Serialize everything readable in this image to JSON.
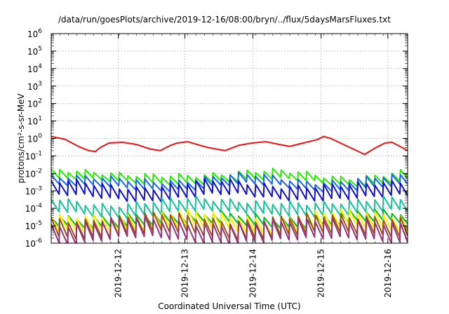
{
  "chart_data": {
    "type": "line",
    "title": "/data/run/goesPlots/archive/2019-12-16/08:00/bryn/../flux/5daysMarsFluxes.txt",
    "xlabel": "Coordinated Universal Time (UTC)",
    "ylabel": "protons/cm²-s-sr-MeV",
    "y_scale": "log",
    "ylim_exponents": [
      -6,
      6
    ],
    "y_tick_base": "10",
    "y_tick_exponents": [
      "6",
      "5",
      "4",
      "3",
      "2",
      "1",
      "0",
      "-1",
      "-2",
      "-3",
      "-4",
      "-5",
      "-6"
    ],
    "x_range_days": [
      0,
      5.23
    ],
    "x_ticks": [
      {
        "label": "2019-12-12",
        "day": 0.985
      },
      {
        "label": "2019-12-13",
        "day": 1.962
      },
      {
        "label": "2019-12-14",
        "day": 2.96
      },
      {
        "label": "2019-12-15",
        "day": 3.96
      },
      {
        "label": "2019-12-16",
        "day": 4.94
      }
    ],
    "grid": true,
    "series": [
      {
        "color": "#ee1111",
        "kind": "trend",
        "x": [
          0,
          0.2,
          0.4,
          0.55,
          0.65,
          0.72,
          0.85,
          1.05,
          1.25,
          1.45,
          1.6,
          1.75,
          1.85,
          2.0,
          2.3,
          2.55,
          2.75,
          2.95,
          3.15,
          3.35,
          3.5,
          3.7,
          3.9,
          4.0,
          4.1,
          4.35,
          4.6,
          4.75,
          4.9,
          5.0,
          5.15,
          5.23
        ],
        "y": [
          1.3,
          0.9,
          0.35,
          0.2,
          0.18,
          0.3,
          0.55,
          0.6,
          0.45,
          0.25,
          0.2,
          0.4,
          0.55,
          0.65,
          0.3,
          0.2,
          0.4,
          0.55,
          0.65,
          0.45,
          0.35,
          0.55,
          0.85,
          1.3,
          1.0,
          0.35,
          0.12,
          0.28,
          0.55,
          0.6,
          0.3,
          0.2
        ]
      },
      {
        "color": "#22ee00",
        "kind": "sawtooth",
        "base_log": -2.25,
        "amp_log": 0.45,
        "period_days": 0.125
      },
      {
        "color": "#1a66ee",
        "kind": "sawtooth",
        "base_log": -2.55,
        "amp_log": 0.5,
        "period_days": 0.125
      },
      {
        "color": "#1111cc",
        "kind": "sawtooth",
        "base_log": -3.0,
        "amp_log": 0.75,
        "period_days": 0.125
      },
      {
        "color": "#16c29a",
        "kind": "sawtooth",
        "base_log": -3.95,
        "amp_log": 0.7,
        "period_days": 0.125
      },
      {
        "color": "#00bb22",
        "kind": "sawtooth",
        "base_log": -4.65,
        "amp_log": 0.55,
        "period_days": 0.125
      },
      {
        "color": "#ffee00",
        "kind": "sawtooth",
        "base_log": -4.8,
        "amp_log": 0.85,
        "period_days": 0.125
      },
      {
        "color": "#995511",
        "kind": "sawtooth",
        "base_log": -5.05,
        "amp_log": 1.0,
        "period_days": 0.125
      },
      {
        "color": "#993377",
        "kind": "sawtooth",
        "base_log": -5.3,
        "amp_log": 1.05,
        "period_days": 0.125
      }
    ]
  }
}
